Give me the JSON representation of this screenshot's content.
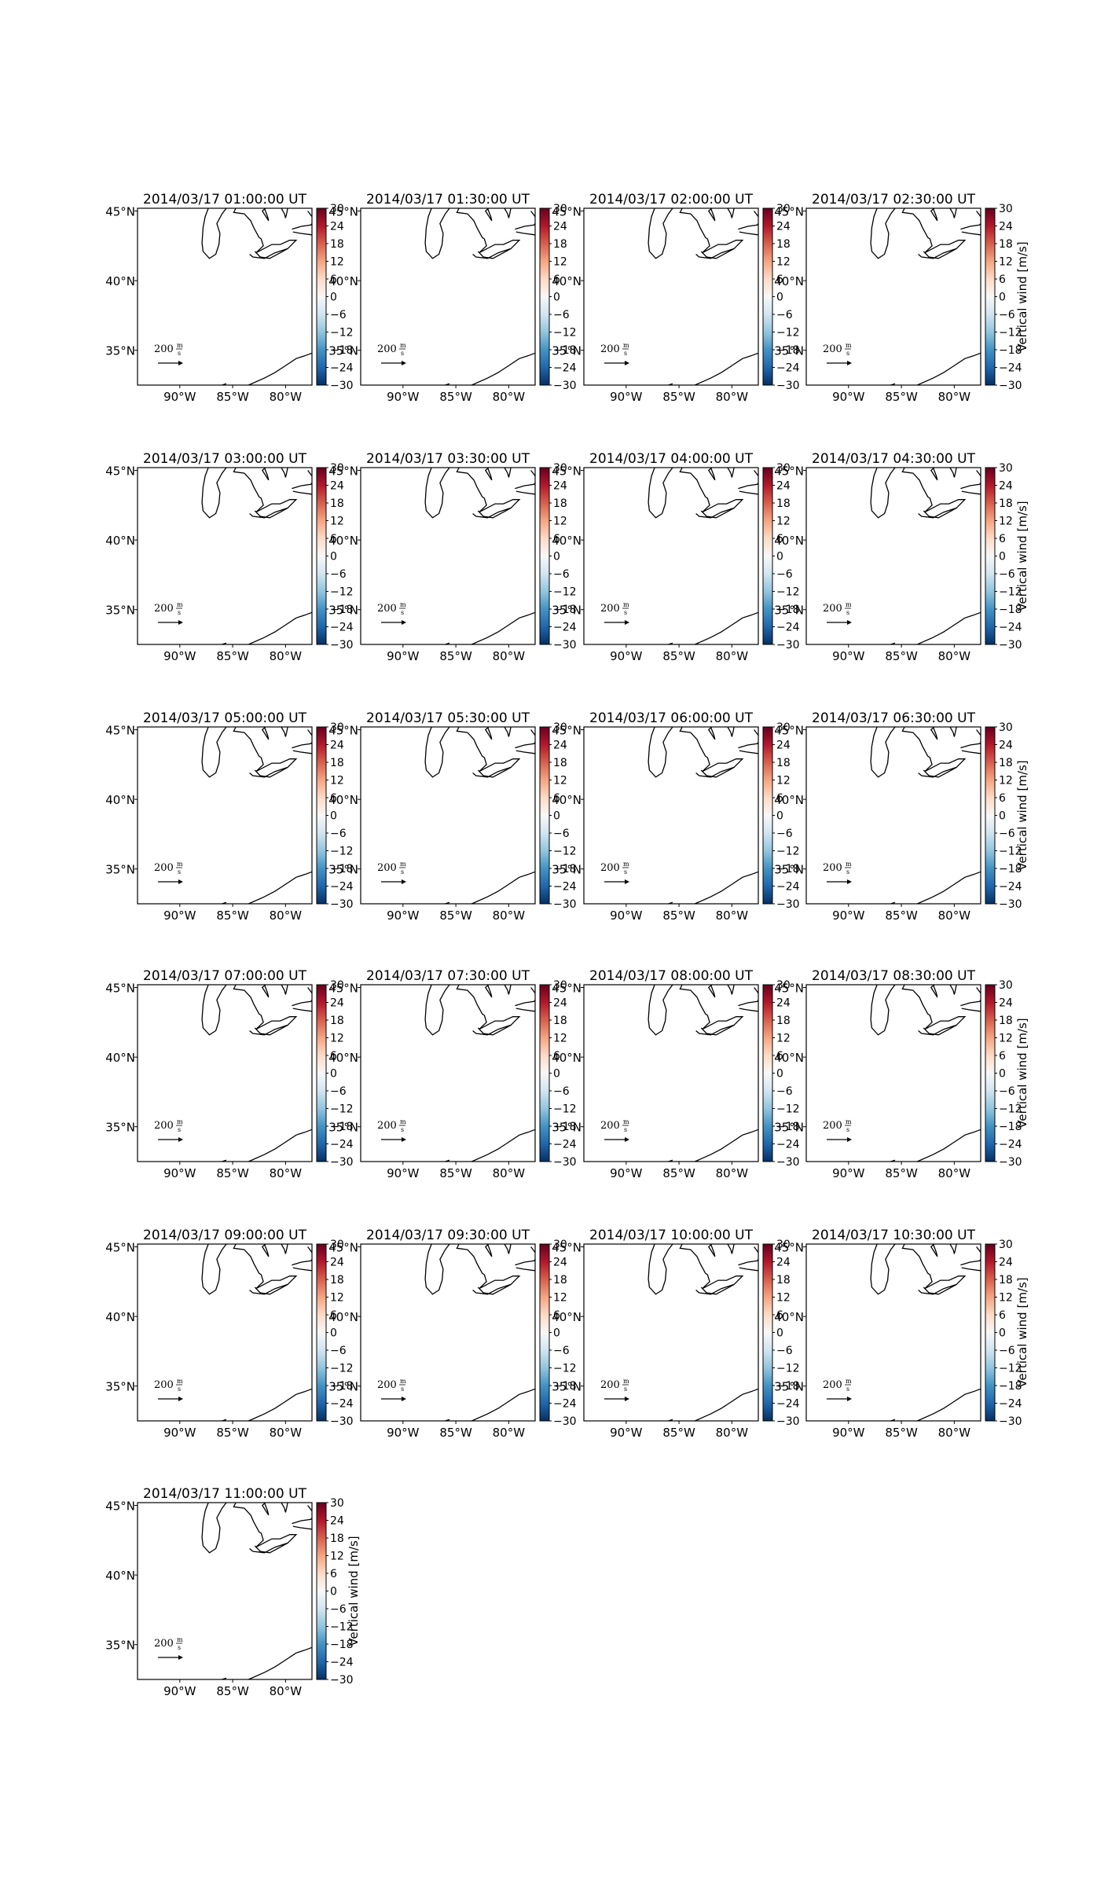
{
  "figure": {
    "background": "#ffffff",
    "colormap": "RdBu_r",
    "colormap_stops": [
      "#053061",
      "#2166ac",
      "#4393c3",
      "#92c5de",
      "#d1e5f0",
      "#f7f7f7",
      "#fddbc7",
      "#f4a582",
      "#d6604d",
      "#b2182b",
      "#67001f"
    ]
  },
  "chart_data": {
    "type": "map",
    "panels": [
      {
        "title": "2014/03/17 01:00:00 UT",
        "show_cbar_label": false
      },
      {
        "title": "2014/03/17 01:30:00 UT",
        "show_cbar_label": false
      },
      {
        "title": "2014/03/17 02:00:00 UT",
        "show_cbar_label": false
      },
      {
        "title": "2014/03/17 02:30:00 UT",
        "show_cbar_label": true
      },
      {
        "title": "2014/03/17 03:00:00 UT",
        "show_cbar_label": false
      },
      {
        "title": "2014/03/17 03:30:00 UT",
        "show_cbar_label": false
      },
      {
        "title": "2014/03/17 04:00:00 UT",
        "show_cbar_label": false
      },
      {
        "title": "2014/03/17 04:30:00 UT",
        "show_cbar_label": true
      },
      {
        "title": "2014/03/17 05:00:00 UT",
        "show_cbar_label": false
      },
      {
        "title": "2014/03/17 05:30:00 UT",
        "show_cbar_label": false
      },
      {
        "title": "2014/03/17 06:00:00 UT",
        "show_cbar_label": false
      },
      {
        "title": "2014/03/17 06:30:00 UT",
        "show_cbar_label": true
      },
      {
        "title": "2014/03/17 07:00:00 UT",
        "show_cbar_label": false
      },
      {
        "title": "2014/03/17 07:30:00 UT",
        "show_cbar_label": false
      },
      {
        "title": "2014/03/17 08:00:00 UT",
        "show_cbar_label": false
      },
      {
        "title": "2014/03/17 08:30:00 UT",
        "show_cbar_label": true
      },
      {
        "title": "2014/03/17 09:00:00 UT",
        "show_cbar_label": false
      },
      {
        "title": "2014/03/17 09:30:00 UT",
        "show_cbar_label": false
      },
      {
        "title": "2014/03/17 10:00:00 UT",
        "show_cbar_label": false
      },
      {
        "title": "2014/03/17 10:30:00 UT",
        "show_cbar_label": true
      },
      {
        "title": "2014/03/17 11:00:00 UT",
        "show_cbar_label": true
      }
    ],
    "lat_ticks": [
      "45°N",
      "40°N",
      "35°N"
    ],
    "lon_ticks": [
      "90°W",
      "85°W",
      "80°W"
    ],
    "colorbar": {
      "label": "Vertical wind [m/s]",
      "ticks": [
        30,
        24,
        18,
        12,
        6,
        0,
        -6,
        -12,
        -18,
        -24,
        -30
      ],
      "range": [
        -30,
        30
      ]
    },
    "quiver_key": {
      "value": "200",
      "unit_num": "m",
      "unit_den": "s"
    },
    "data_present": false
  }
}
